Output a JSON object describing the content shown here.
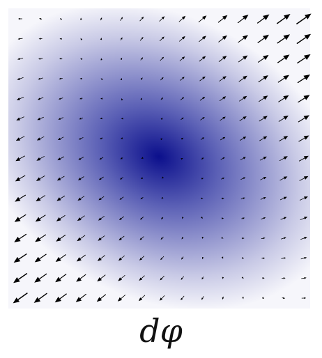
{
  "figure": {
    "caption": "dφ",
    "field_type": "gradient-vector-field",
    "background": "radial-potential-heatmap",
    "grid": {
      "rows": 15,
      "cols": 15
    },
    "colors": {
      "center": "#0b0f8c",
      "mid": "#5a5fb5",
      "edge": "#f6f6fb",
      "arrow": "#000000"
    }
  }
}
